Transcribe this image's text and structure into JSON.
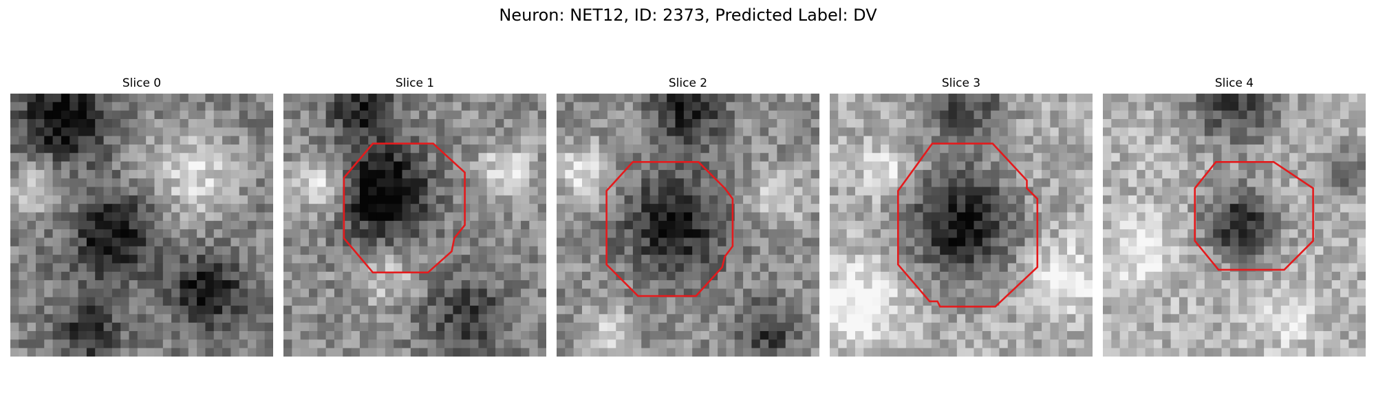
{
  "figure": {
    "title": "Neuron: NET12, ID: 2373, Predicted Label: DV"
  },
  "colors": {
    "contour": "#e41a1c",
    "background": "#ffffff"
  },
  "slices": [
    {
      "title": "Slice 0",
      "has_contour": false,
      "pattern": "diffuse-texture"
    },
    {
      "title": "Slice 1",
      "has_contour": true,
      "pattern": "dark-blob-upper-left"
    },
    {
      "title": "Slice 2",
      "has_contour": true,
      "pattern": "medium-dark-blob"
    },
    {
      "title": "Slice 3",
      "has_contour": true,
      "pattern": "large-dark-disk"
    },
    {
      "title": "Slice 4",
      "has_contour": true,
      "pattern": "small-dark-disk"
    }
  ]
}
